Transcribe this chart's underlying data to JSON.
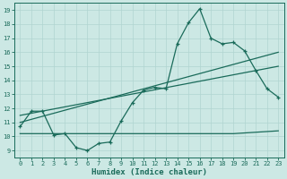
{
  "xlabel": "Humidex (Indice chaleur)",
  "bg_color": "#cce8e4",
  "line_color": "#1a6b5a",
  "grid_color": "#b0d4d0",
  "x_min": -0.5,
  "x_max": 23.5,
  "y_min": 9,
  "y_max": 19,
  "series1_x": [
    0,
    1,
    2,
    3,
    4,
    5,
    6,
    7,
    8,
    9,
    10,
    11,
    12,
    13,
    14,
    15,
    16,
    17,
    18,
    19,
    20,
    21,
    22,
    23
  ],
  "series1_y": [
    10.7,
    11.8,
    11.8,
    10.1,
    10.2,
    9.2,
    9.0,
    9.5,
    9.6,
    11.1,
    12.4,
    13.3,
    13.5,
    13.4,
    16.6,
    18.1,
    19.1,
    17.0,
    16.6,
    16.7,
    16.1,
    14.7,
    13.4,
    12.8
  ],
  "series2_x": [
    0,
    19,
    23
  ],
  "series2_y": [
    10.2,
    10.2,
    10.4
  ],
  "series3_x": [
    0,
    23
  ],
  "series3_y": [
    11.5,
    15.0
  ],
  "series4_x": [
    0,
    23
  ],
  "series4_y": [
    11.0,
    16.0
  ],
  "yticks": [
    9,
    10,
    11,
    12,
    13,
    14,
    15,
    16,
    17,
    18,
    19
  ],
  "xticks": [
    0,
    1,
    2,
    3,
    4,
    5,
    6,
    7,
    8,
    9,
    10,
    11,
    12,
    13,
    14,
    15,
    16,
    17,
    18,
    19,
    20,
    21,
    22,
    23
  ],
  "xlabel_fontsize": 6.5,
  "tick_fontsize": 5.0,
  "lw": 0.9,
  "ms": 3.0
}
